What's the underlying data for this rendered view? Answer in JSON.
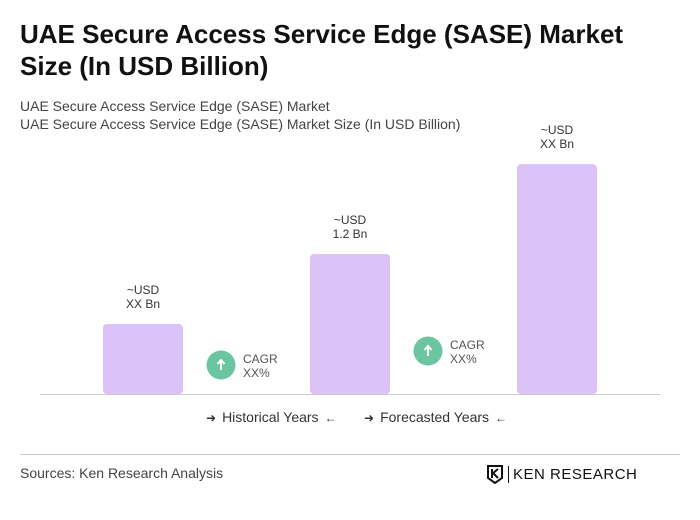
{
  "title": "UAE Secure Access Service Edge (SASE) Market Size (In USD Billion)",
  "subtitle1": "UAE Secure Access Service Edge (SASE) Market",
  "subtitle2": "UAE Secure Access Service Edge (SASE) Market Size (In USD Billion)",
  "chart_data": {
    "type": "bar",
    "categories": [
      "",
      "",
      ""
    ],
    "values": [
      0.6,
      1.2,
      1.97
    ],
    "data_labels": [
      [
        "~USD",
        "XX Bn"
      ],
      [
        "~USD",
        "1.2 Bn"
      ],
      [
        "~USD",
        "XX Bn"
      ]
    ],
    "bar_color": "#dcc3f7",
    "cagr": [
      {
        "label": "CAGR",
        "value": "XX%"
      },
      {
        "label": "CAGR",
        "value": "XX%"
      }
    ],
    "cagr_color": "#6cc5a1",
    "ylim": [
      0,
      2.2
    ],
    "grid": false
  },
  "legend": {
    "historical": "Historical Years",
    "forecasted": "Forecasted Years"
  },
  "sources": "Sources: Ken Research Analysis",
  "logo": "KEN RESEARCH"
}
